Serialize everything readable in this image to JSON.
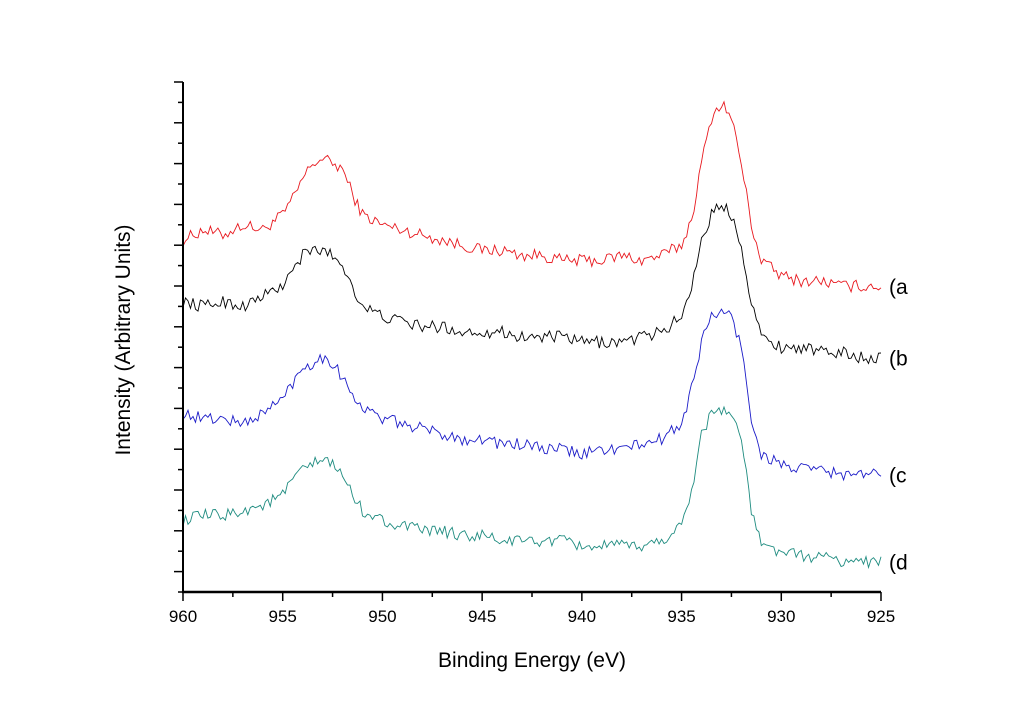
{
  "chart_data": {
    "type": "line",
    "title": "",
    "xlabel": "Binding Energy (eV)",
    "ylabel": "Intensity (Arbitrary Units)",
    "xlim": [
      960,
      925
    ],
    "ylim": [
      0,
      100
    ],
    "x_ticks": [
      "960",
      "955",
      "950",
      "945",
      "940",
      "935",
      "930",
      "925"
    ],
    "x_tick_values": [
      960,
      955,
      950,
      945,
      940,
      935,
      930,
      925
    ],
    "y_tick_labels_shown": false,
    "grid": false,
    "legend": "inline-right",
    "x": [
      960,
      959,
      958,
      957,
      956,
      955,
      954.5,
      954,
      953.5,
      953,
      952.5,
      952,
      951.5,
      951,
      950,
      949,
      948,
      947,
      946,
      945,
      944,
      943,
      942,
      941,
      940,
      939,
      938,
      937,
      936,
      935,
      934.5,
      934,
      933.5,
      933,
      932.5,
      932,
      931.5,
      931,
      930,
      929,
      928,
      927,
      926,
      925
    ],
    "series": [
      {
        "name": "(a",
        "color": "#e8191f",
        "values": [
          69,
          71,
          70,
          72,
          71,
          74,
          77,
          81,
          84,
          85,
          84,
          83,
          78,
          74,
          72,
          71,
          70,
          69,
          68,
          67,
          67,
          66,
          66,
          65,
          65,
          65,
          66,
          65,
          66,
          68,
          73,
          84,
          93,
          96,
          93,
          84,
          72,
          65,
          62,
          61,
          61,
          60,
          60,
          60
        ]
      },
      {
        "name": "(b",
        "color": "#000000",
        "values": [
          57,
          56,
          57,
          56,
          58,
          60,
          63,
          66,
          67,
          67,
          66,
          64,
          60,
          56,
          54,
          53,
          52,
          52,
          51,
          51,
          51,
          50,
          50,
          50,
          49,
          49,
          49,
          50,
          51,
          54,
          60,
          69,
          74,
          76,
          74,
          68,
          57,
          50,
          48,
          48,
          47,
          47,
          46,
          46
        ]
      },
      {
        "name": "(c",
        "color": "#1c1cc8",
        "values": [
          35,
          34,
          34,
          33,
          35,
          38,
          41,
          44,
          45,
          46,
          45,
          42,
          39,
          36,
          34,
          33,
          32,
          31,
          30,
          30,
          29,
          29,
          28,
          28,
          27,
          28,
          28,
          29,
          30,
          33,
          40,
          49,
          54,
          55,
          54,
          48,
          34,
          27,
          25,
          24,
          24,
          23,
          23,
          23
        ]
      },
      {
        "name": "(d",
        "color": "#1f8c80",
        "values": [
          14,
          15,
          15,
          16,
          17,
          19,
          22,
          24,
          25,
          26,
          25,
          23,
          19,
          16,
          14,
          13,
          12,
          12,
          11,
          11,
          10,
          10,
          10,
          10,
          9,
          9,
          9,
          9,
          10,
          13,
          20,
          31,
          35,
          36,
          35,
          30,
          16,
          9,
          8,
          7,
          7,
          6,
          6,
          6
        ]
      }
    ]
  }
}
